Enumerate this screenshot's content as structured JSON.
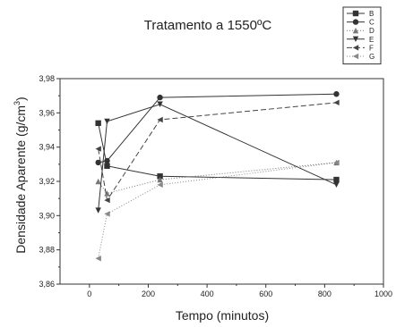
{
  "chart_data": {
    "type": "line",
    "title": "Tratamento a 1550ºC",
    "xlabel": "Tempo (minutos)",
    "ylabel_main": "Densidade Aparente (g/cm",
    "ylabel_sup": "3",
    "ylabel_close": ")",
    "xlim": [
      -100,
      1000
    ],
    "ylim": [
      3.86,
      3.98
    ],
    "xticks": [
      0,
      200,
      400,
      600,
      800,
      1000
    ],
    "xtick_labels": [
      "0",
      "200",
      "400",
      "600",
      "800",
      "1000"
    ],
    "yticks": [
      3.86,
      3.88,
      3.9,
      3.92,
      3.94,
      3.96,
      3.98
    ],
    "ytick_labels": [
      "3,86",
      "3,88",
      "3,90",
      "3,92",
      "3,94",
      "3,96",
      "3,98"
    ],
    "grid": false,
    "legend_position": "top-right",
    "series": [
      {
        "name": "B",
        "marker": "square",
        "dash": "",
        "color": "#333333",
        "x": [
          30,
          60,
          240,
          840
        ],
        "y": [
          3.954,
          3.929,
          3.923,
          3.921
        ]
      },
      {
        "name": "C",
        "marker": "circle",
        "dash": "",
        "color": "#333333",
        "x": [
          30,
          60,
          240,
          840
        ],
        "y": [
          3.931,
          3.932,
          3.969,
          3.971
        ]
      },
      {
        "name": "D",
        "marker": "triangle-up",
        "dash": "1,2",
        "color": "#777777",
        "x": [
          30,
          60,
          240,
          840
        ],
        "y": [
          3.92,
          3.913,
          3.921,
          3.931
        ]
      },
      {
        "name": "E",
        "marker": "triangle-down",
        "dash": "",
        "color": "#333333",
        "x": [
          30,
          60,
          240,
          840
        ],
        "y": [
          3.903,
          3.955,
          3.965,
          3.918
        ]
      },
      {
        "name": "F",
        "marker": "triangle-left",
        "dash": "6,3",
        "color": "#444444",
        "x": [
          30,
          60,
          240,
          840
        ],
        "y": [
          3.939,
          3.909,
          3.956,
          3.966
        ]
      },
      {
        "name": "G",
        "marker": "triangle-left",
        "dash": "1,2",
        "color": "#888888",
        "x": [
          30,
          60,
          240,
          840
        ],
        "y": [
          3.875,
          3.901,
          3.918,
          3.931
        ]
      }
    ]
  }
}
